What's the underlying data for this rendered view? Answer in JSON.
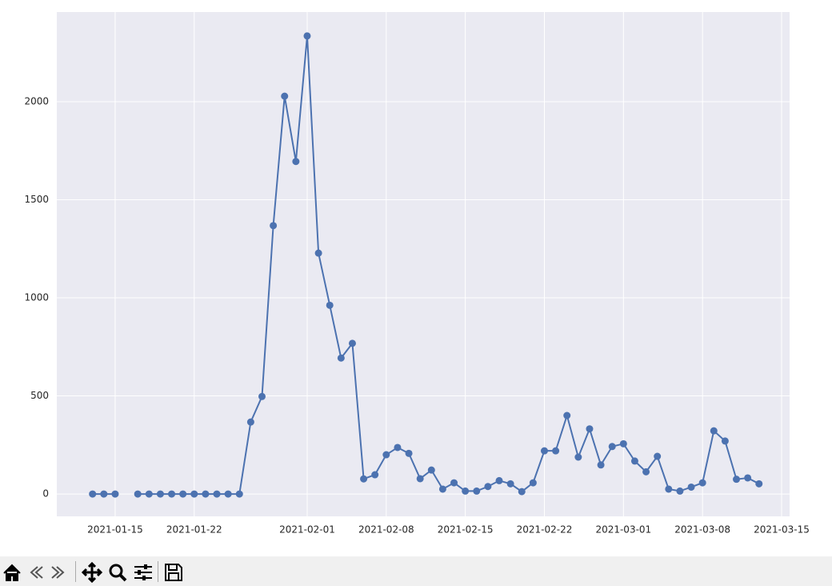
{
  "chart_data": {
    "type": "line",
    "x": [
      "2021-01-13",
      "2021-01-14",
      "2021-01-15",
      "2021-01-16",
      "2021-01-17",
      "2021-01-18",
      "2021-01-19",
      "2021-01-20",
      "2021-01-21",
      "2021-01-22",
      "2021-01-23",
      "2021-01-24",
      "2021-01-25",
      "2021-01-26",
      "2021-01-27",
      "2021-01-28",
      "2021-01-29",
      "2021-01-30",
      "2021-01-31",
      "2021-02-01",
      "2021-02-02",
      "2021-02-03",
      "2021-02-04",
      "2021-02-05",
      "2021-02-06",
      "2021-02-07",
      "2021-02-08",
      "2021-02-09",
      "2021-02-10",
      "2021-02-11",
      "2021-02-12",
      "2021-02-13",
      "2021-02-14",
      "2021-02-15",
      "2021-02-16",
      "2021-02-17",
      "2021-02-18",
      "2021-02-19",
      "2021-02-20",
      "2021-02-21",
      "2021-02-22",
      "2021-02-23",
      "2021-02-24",
      "2021-02-25",
      "2021-02-26",
      "2021-02-27",
      "2021-02-28",
      "2021-03-01",
      "2021-03-02",
      "2021-03-03",
      "2021-03-04",
      "2021-03-05",
      "2021-03-06",
      "2021-03-07",
      "2021-03-08",
      "2021-03-09",
      "2021-03-10",
      "2021-03-11",
      "2021-03-12",
      "2021-03-13"
    ],
    "values": [
      0,
      0,
      0,
      null,
      0,
      0,
      0,
      0,
      0,
      0,
      0,
      0,
      0,
      0,
      367,
      497,
      1368,
      2028,
      1695,
      2335,
      1228,
      962,
      693,
      768,
      77,
      98,
      200,
      237,
      207,
      78,
      122,
      25,
      57,
      15,
      15,
      38,
      68,
      52,
      12,
      57,
      220,
      220,
      400,
      188,
      332,
      148,
      242,
      256,
      168,
      113,
      192,
      25,
      15,
      35,
      57,
      322,
      270,
      75,
      82,
      52
    ],
    "color": "#4c72b0",
    "xlim": [
      "2021-01-09T20:00:00Z",
      "2021-03-15T17:00:00Z"
    ],
    "xticks": [
      "2021-01-15",
      "2021-01-22",
      "2021-02-01",
      "2021-02-08",
      "2021-02-15",
      "2021-02-22",
      "2021-03-01",
      "2021-03-08",
      "2021-03-15"
    ],
    "ylim": [
      -114,
      2457
    ],
    "yticks": [
      0,
      500,
      1000,
      1500,
      2000
    ],
    "grid": true
  }
}
